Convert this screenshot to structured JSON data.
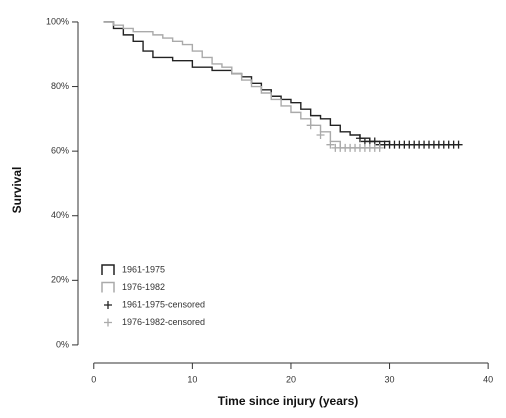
{
  "chart_data": {
    "type": "survival",
    "xlabel": "Time since injury (years)",
    "ylabel": "Survival",
    "xlim": [
      -1.6,
      41
    ],
    "xticks": [
      0,
      10,
      20,
      30,
      40
    ],
    "ylim": [
      -5.6,
      102
    ],
    "yticks": [
      {
        "value": 0,
        "label": "0%"
      },
      {
        "value": 20,
        "label": "20%"
      },
      {
        "value": 40,
        "label": "40%"
      },
      {
        "value": 60,
        "label": "60%"
      },
      {
        "value": 80,
        "label": "80%"
      },
      {
        "value": 100,
        "label": "100%"
      }
    ],
    "legend": "lower left",
    "series": [
      {
        "name": "1961-1975",
        "kind": "step",
        "color": "#222222",
        "x": [
          1,
          2,
          3,
          4,
          5,
          6,
          8,
          10,
          12,
          14,
          15,
          16,
          17,
          18,
          19,
          20,
          21,
          22,
          23,
          24,
          25,
          26,
          27,
          28,
          30,
          37
        ],
        "values": [
          100,
          98,
          96,
          94,
          91,
          89,
          88,
          86,
          85,
          84,
          83,
          81,
          79,
          77,
          76,
          75,
          73,
          71,
          70,
          68,
          66,
          65,
          64,
          63,
          62,
          62
        ]
      },
      {
        "name": "1976-1982",
        "kind": "step",
        "color": "#aaaaaa",
        "x": [
          1,
          2,
          3,
          4,
          5,
          6,
          7,
          8,
          9,
          10,
          11,
          12,
          13,
          14,
          15,
          16,
          17,
          18,
          19,
          20,
          21,
          22,
          23,
          24,
          25,
          29
        ],
        "values": [
          100,
          99,
          98,
          97,
          97,
          96,
          95,
          94,
          93,
          91,
          89,
          87,
          86,
          84,
          82,
          80,
          78,
          76,
          74,
          72,
          70,
          68,
          66,
          63,
          61,
          61
        ]
      },
      {
        "name": "1961-1975-censored",
        "kind": "censor",
        "color": "#222222",
        "x": [
          27,
          27.5,
          28,
          28.5,
          29,
          29.5,
          30,
          30.5,
          31,
          31.5,
          32,
          32.5,
          33,
          33.5,
          34,
          34.5,
          35,
          35.5,
          36,
          36.5,
          37
        ],
        "values": [
          64,
          63,
          63,
          63,
          62,
          62,
          62,
          62,
          62,
          62,
          62,
          62,
          62,
          62,
          62,
          62,
          62,
          62,
          62,
          62,
          62
        ]
      },
      {
        "name": "1976-1982-censored",
        "kind": "censor",
        "color": "#aaaaaa",
        "x": [
          22,
          23,
          24,
          24.5,
          25,
          25.5,
          26,
          26.5,
          27,
          27.5,
          28,
          28.5,
          29
        ],
        "values": [
          68,
          65,
          62,
          61,
          61,
          61,
          61,
          61,
          61,
          61,
          61,
          61,
          61
        ]
      }
    ]
  }
}
